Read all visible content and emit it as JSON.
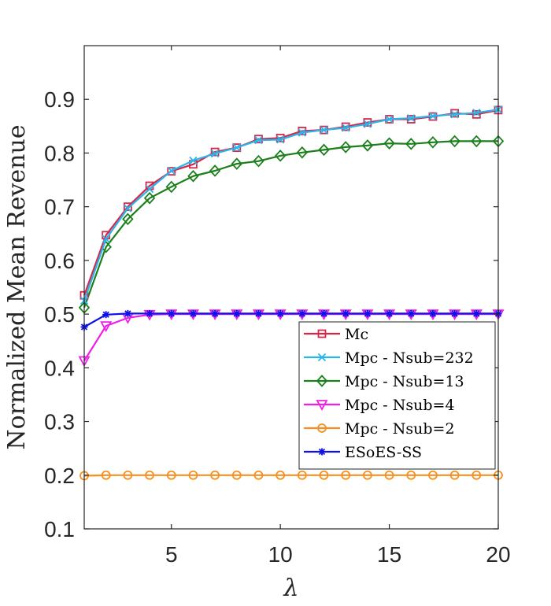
{
  "chart_data": {
    "type": "line",
    "xlabel": "λ",
    "ylabel": "Normalized Mean Revenue",
    "xlim": [
      1,
      20
    ],
    "ylim": [
      0.1,
      1.0
    ],
    "xticks": [
      5,
      10,
      15,
      20
    ],
    "yticks": [
      0.1,
      0.2,
      0.3,
      0.4,
      0.5,
      0.6,
      0.7,
      0.8,
      0.9
    ],
    "xtick_labels": [
      "5",
      "10",
      "15",
      "20"
    ],
    "ytick_labels": [
      "0.1",
      "0.2",
      "0.3",
      "0.4",
      "0.5",
      "0.6",
      "0.7",
      "0.8",
      "0.9"
    ],
    "grid": false,
    "legend_position": "lower-right",
    "x": [
      1,
      2,
      3,
      4,
      5,
      6,
      7,
      8,
      9,
      10,
      11,
      12,
      13,
      14,
      15,
      16,
      17,
      18,
      19,
      20
    ],
    "series": [
      {
        "name": "Mc",
        "color": "#d6264a",
        "marker": "square",
        "values": [
          0.535,
          0.647,
          0.7,
          0.739,
          0.766,
          0.779,
          0.802,
          0.81,
          0.826,
          0.828,
          0.841,
          0.843,
          0.849,
          0.857,
          0.863,
          0.863,
          0.868,
          0.874,
          0.872,
          0.88
        ]
      },
      {
        "name": "Mpc - Nsub=232",
        "color": "#2ab5e8",
        "marker": "x",
        "values": [
          0.525,
          0.64,
          0.697,
          0.733,
          0.767,
          0.786,
          0.799,
          0.81,
          0.824,
          0.825,
          0.838,
          0.843,
          0.847,
          0.854,
          0.863,
          0.865,
          0.869,
          0.872,
          0.875,
          0.881
        ]
      },
      {
        "name": "Mpc - Nsub=13",
        "color": "#1b7f1b",
        "marker": "diamond",
        "values": [
          0.512,
          0.625,
          0.677,
          0.716,
          0.737,
          0.757,
          0.767,
          0.78,
          0.785,
          0.795,
          0.801,
          0.806,
          0.811,
          0.814,
          0.818,
          0.817,
          0.82,
          0.822,
          0.822,
          0.822
        ]
      },
      {
        "name": "Mpc - Nsub=4",
        "color": "#f01ee8",
        "marker": "triangle-down",
        "values": [
          0.413,
          0.478,
          0.493,
          0.499,
          0.5,
          0.5,
          0.5,
          0.5,
          0.5,
          0.5,
          0.5,
          0.5,
          0.5,
          0.5,
          0.5,
          0.5,
          0.5,
          0.5,
          0.5,
          0.5
        ]
      },
      {
        "name": "Mpc - Nsub=2",
        "color": "#f59020",
        "marker": "circle",
        "values": [
          0.199,
          0.2,
          0.2,
          0.2,
          0.2,
          0.2,
          0.2,
          0.2,
          0.2,
          0.2,
          0.2,
          0.2,
          0.2,
          0.2,
          0.2,
          0.2,
          0.2,
          0.2,
          0.2,
          0.2
        ]
      },
      {
        "name": "ESoES-SS",
        "color": "#1010e8",
        "marker": "asterisk",
        "values": [
          0.476,
          0.499,
          0.501,
          0.501,
          0.501,
          0.501,
          0.501,
          0.501,
          0.501,
          0.501,
          0.501,
          0.501,
          0.501,
          0.501,
          0.501,
          0.501,
          0.501,
          0.501,
          0.501,
          0.501
        ]
      }
    ]
  }
}
